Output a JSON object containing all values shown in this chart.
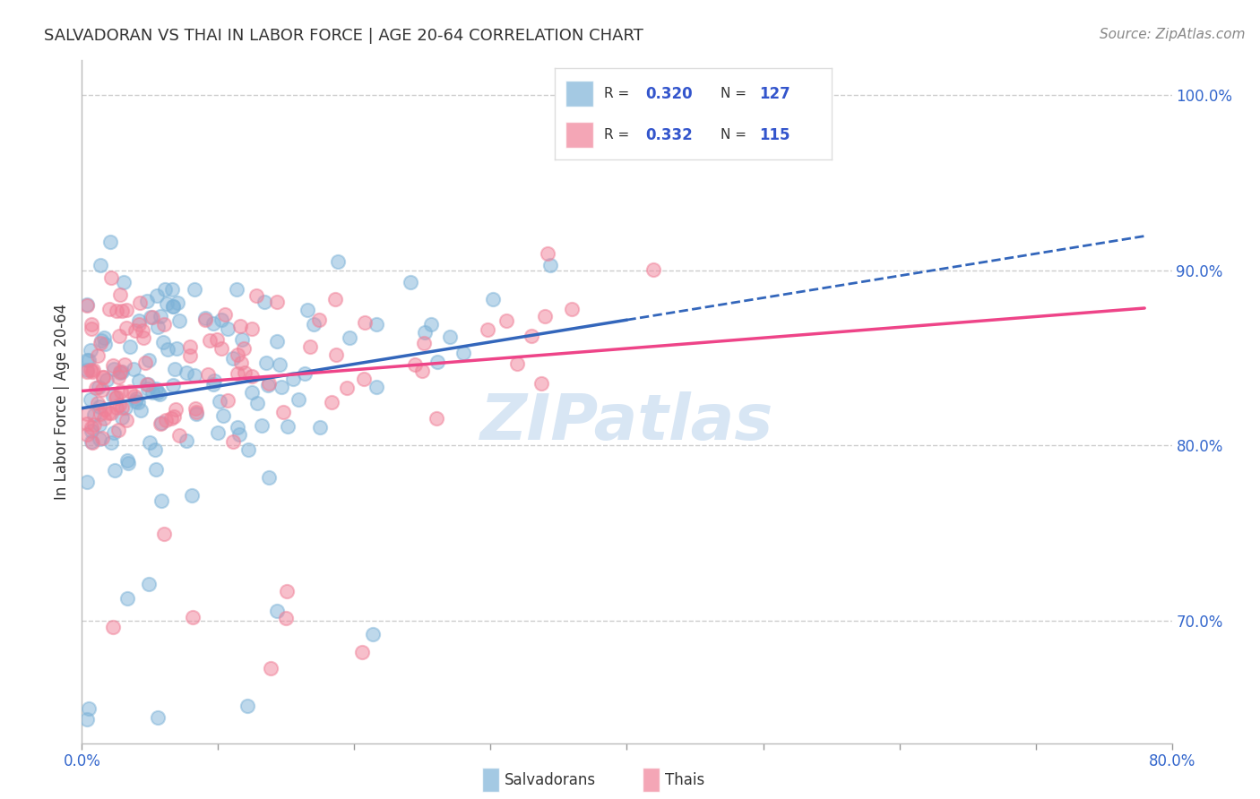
{
  "title": "SALVADORAN VS THAI IN LABOR FORCE | AGE 20-64 CORRELATION CHART",
  "source": "Source: ZipAtlas.com",
  "ylabel": "In Labor Force | Age 20-64",
  "xlim": [
    0.0,
    0.8
  ],
  "ylim": [
    0.63,
    1.02
  ],
  "xtick_vals": [
    0.0,
    0.1,
    0.2,
    0.3,
    0.4,
    0.5,
    0.6,
    0.7,
    0.8
  ],
  "xtick_labels": [
    "0.0%",
    "",
    "",
    "",
    "",
    "",
    "",
    "",
    "80.0%"
  ],
  "ytick_vals": [
    0.7,
    0.8,
    0.9,
    1.0
  ],
  "ytick_labels": [
    "70.0%",
    "80.0%",
    "90.0%",
    "100.0%"
  ],
  "salvadoran_color": "#7eb3d8",
  "thai_color": "#f08098",
  "trend_salvadoran_color": "#3366bb",
  "trend_thai_color": "#ee4488",
  "R_salvadoran": "0.320",
  "N_salvadoran": "127",
  "R_thai": "0.332",
  "N_thai": "115",
  "legend_color": "#3355cc",
  "background_color": "#ffffff",
  "grid_color": "#cccccc",
  "watermark_text": "ZIPatlas",
  "watermark_color": "#aac8e8",
  "title_fontsize": 13,
  "source_fontsize": 11
}
